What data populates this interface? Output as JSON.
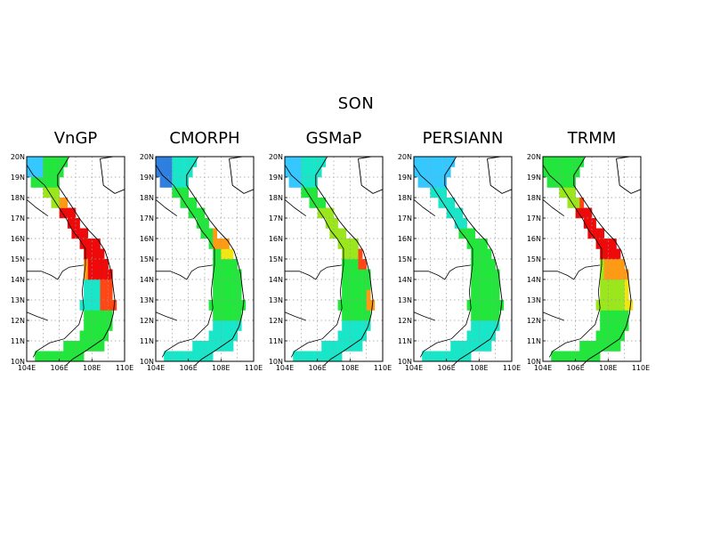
{
  "title": "SON",
  "panels": [
    {
      "name": "VnGP",
      "scheme": "vngp"
    },
    {
      "name": "CMORPH",
      "scheme": "cmorph"
    },
    {
      "name": "GSMaP",
      "scheme": "gsmap"
    },
    {
      "name": "PERSIANN",
      "scheme": "persiann"
    },
    {
      "name": "TRMM",
      "scheme": "trmm"
    }
  ],
  "axes": {
    "lon_ticks": [
      "104E",
      "106E",
      "108E",
      "110E"
    ],
    "lat_ticks": [
      "10N",
      "11N",
      "12N",
      "13N",
      "14N",
      "15N",
      "16N",
      "17N",
      "18N",
      "19N",
      "20N"
    ],
    "lon_range": [
      104,
      110
    ],
    "lat_range": [
      10,
      20
    ],
    "grid": true
  },
  "colors": {
    "dry_blue": "#2f7fe0",
    "light_blue": "#35c8ff",
    "cyan": "#19e6c8",
    "green": "#22e63c",
    "yellow_green": "#9be61c",
    "yellow": "#f0e614",
    "orange": "#ff9a14",
    "red_orange": "#ff4614",
    "red": "#ee0a0a"
  }
}
